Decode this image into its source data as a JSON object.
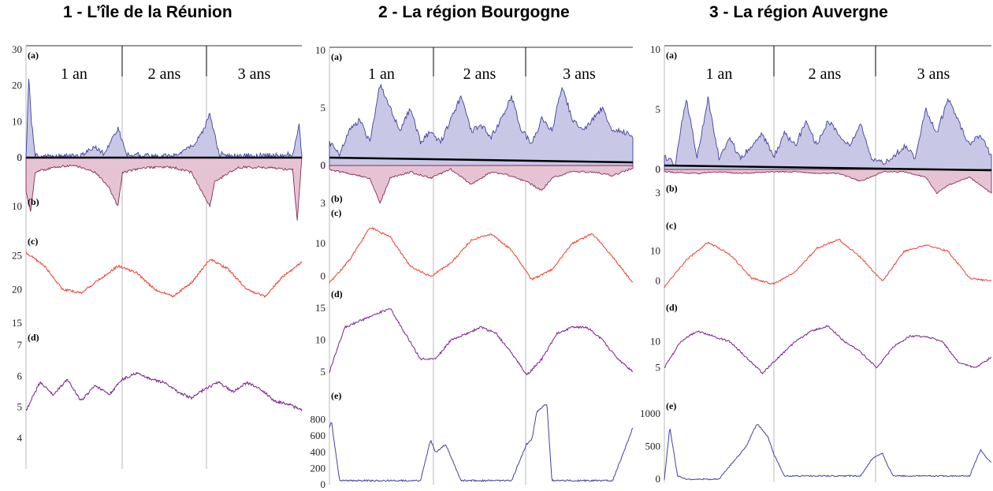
{
  "titles": [
    "1 - L’île de la Réunion",
    "2 - La région Bourgogne",
    "3 - La région Auvergne"
  ],
  "year_labels": [
    "1 an",
    "2 ans",
    "3 ans"
  ],
  "panel_letters": [
    "(a)",
    "(b)",
    "(c)",
    "(d)",
    "(e)"
  ],
  "colors": {
    "a_line": "#3f3fa0",
    "a_fill": "#c8c8e6",
    "b_line": "#8b2b55",
    "b_fill": "#e6c3d3",
    "c_line": "#f23a2e",
    "d_line": "#7b1f8e",
    "e_line": "#4040a8",
    "baseline": "#000000",
    "divider": "#000000"
  },
  "chart_data": [
    {
      "type": "line",
      "title": "1 - L’île de la Réunion",
      "x_range": [
        0,
        3
      ],
      "x_unit_labels": [
        "1 an",
        "2 ans",
        "3 ans"
      ],
      "panels": [
        {
          "id": "a",
          "ylim": [
            0,
            30
          ],
          "ticks": [
            0,
            10,
            20,
            30
          ],
          "x": [
            0,
            0.03,
            0.06,
            0.1,
            0.3,
            0.6,
            0.75,
            0.85,
            1.0,
            1.1,
            1.3,
            1.6,
            1.8,
            1.9,
            2.0,
            2.1,
            2.3,
            2.6,
            2.9,
            2.97,
            3.0
          ],
          "values": [
            0,
            22,
            10,
            0.5,
            0.3,
            0.5,
            3,
            1,
            8,
            1,
            0.5,
            0.4,
            3,
            6,
            12,
            1,
            0.5,
            0.5,
            1,
            9,
            0
          ]
        },
        {
          "id": "b",
          "ylim": [
            0,
            10
          ],
          "ticks": [
            0,
            10
          ],
          "inverted": true,
          "x": [
            0,
            0.05,
            0.1,
            0.3,
            0.5,
            0.75,
            0.9,
            1.0,
            1.05,
            1.3,
            1.6,
            1.8,
            2.0,
            2.05,
            2.3,
            2.6,
            2.9,
            2.95,
            3.0
          ],
          "values": [
            7,
            11,
            3,
            2,
            1.5,
            3,
            6,
            10,
            3,
            2,
            2,
            3,
            10,
            5,
            2,
            2,
            2.5,
            13,
            0
          ]
        },
        {
          "id": "c",
          "ylim": [
            15,
            26
          ],
          "ticks": [
            15,
            20,
            25
          ],
          "x": [
            0,
            0.2,
            0.4,
            0.6,
            0.8,
            1.0,
            1.2,
            1.4,
            1.6,
            1.8,
            2.0,
            2.2,
            2.4,
            2.6,
            2.8,
            3.0
          ],
          "values": [
            25.5,
            23.5,
            20,
            19.5,
            21.5,
            23.5,
            22.5,
            20,
            19,
            21,
            24.5,
            23,
            20,
            19,
            22,
            24
          ]
        },
        {
          "id": "d",
          "ylim": [
            4,
            7
          ],
          "ticks": [
            4,
            5,
            6,
            7
          ],
          "x": [
            0,
            0.15,
            0.3,
            0.45,
            0.6,
            0.75,
            0.9,
            1.05,
            1.2,
            1.35,
            1.5,
            1.65,
            1.8,
            1.95,
            2.1,
            2.25,
            2.4,
            2.55,
            2.7,
            2.85,
            3.0
          ],
          "values": [
            4.9,
            5.8,
            5.4,
            5.9,
            5.2,
            5.7,
            5.4,
            5.9,
            6.1,
            5.9,
            5.8,
            5.5,
            5.3,
            5.6,
            5.8,
            5.5,
            5.8,
            5.6,
            5.2,
            5.1,
            4.9
          ]
        }
      ]
    },
    {
      "type": "line",
      "title": "2 - La région Bourgogne",
      "x_range": [
        0,
        3
      ],
      "x_unit_labels": [
        "1 an",
        "2 ans",
        "3 ans"
      ],
      "panels": [
        {
          "id": "a",
          "ylim": [
            0,
            10
          ],
          "ticks": [
            0,
            5,
            10
          ],
          "x": [
            0,
            0.1,
            0.2,
            0.3,
            0.4,
            0.5,
            0.6,
            0.7,
            0.8,
            0.9,
            1.0,
            1.1,
            1.2,
            1.3,
            1.4,
            1.5,
            1.6,
            1.7,
            1.8,
            1.9,
            2.0,
            2.1,
            2.2,
            2.3,
            2.4,
            2.5,
            2.6,
            2.7,
            2.8,
            2.9,
            3.0
          ],
          "values": [
            2,
            1,
            3,
            4,
            2,
            7,
            5,
            3,
            5,
            2,
            3,
            2,
            4,
            6,
            3,
            3.5,
            2.5,
            4,
            6,
            3,
            2,
            4,
            3,
            7,
            4,
            3,
            4,
            5,
            3,
            3,
            2.5
          ]
        },
        {
          "id": "b",
          "ylim": [
            0,
            3
          ],
          "ticks": [
            0,
            3
          ],
          "inverted": true,
          "x": [
            0,
            0.4,
            0.5,
            0.6,
            0.8,
            1.0,
            1.2,
            1.4,
            1.6,
            1.8,
            2.0,
            2.1,
            2.2,
            2.4,
            2.6,
            2.8,
            3.0
          ],
          "values": [
            0.3,
            1,
            3,
            1,
            0.5,
            1,
            0.3,
            1.5,
            0.5,
            0.8,
            1.5,
            2,
            1,
            0.5,
            0.5,
            0.8,
            0.2
          ]
        },
        {
          "id": "c",
          "ylim": [
            -3,
            17
          ],
          "ticks": [
            0,
            10
          ],
          "x": [
            0,
            0.2,
            0.4,
            0.6,
            0.8,
            1.0,
            1.2,
            1.4,
            1.6,
            1.8,
            2.0,
            2.2,
            2.4,
            2.6,
            2.8,
            3.0
          ],
          "values": [
            -2,
            5,
            15,
            12,
            3,
            0,
            4,
            11,
            13,
            8,
            -1,
            2,
            10,
            13,
            6,
            -2
          ]
        },
        {
          "id": "d",
          "ylim": [
            4,
            16
          ],
          "ticks": [
            5,
            10,
            15
          ],
          "x": [
            0,
            0.15,
            0.3,
            0.45,
            0.6,
            0.75,
            0.9,
            1.05,
            1.2,
            1.35,
            1.5,
            1.65,
            1.8,
            1.95,
            2.1,
            2.25,
            2.4,
            2.55,
            2.7,
            2.85,
            3.0
          ],
          "values": [
            5,
            12,
            13,
            14,
            15,
            11,
            7,
            7,
            10,
            11,
            12,
            11,
            8,
            4.5,
            7,
            11,
            12,
            12,
            10,
            7,
            5
          ]
        },
        {
          "id": "e",
          "ylim": [
            0,
            1000
          ],
          "ticks": [
            0,
            200,
            400,
            600,
            800
          ],
          "x": [
            0,
            0.02,
            0.1,
            0.2,
            0.5,
            0.9,
            1.0,
            1.05,
            1.15,
            1.3,
            1.5,
            1.8,
            1.95,
            2.0,
            2.05,
            2.15,
            2.2,
            2.3,
            2.5,
            2.8,
            2.97,
            3.0
          ],
          "values": [
            700,
            780,
            50,
            50,
            50,
            50,
            550,
            400,
            500,
            50,
            50,
            50,
            500,
            550,
            900,
            1000,
            50,
            50,
            50,
            50,
            600,
            700
          ]
        }
      ]
    },
    {
      "type": "line",
      "title": "3 - La région Auvergne",
      "x_range": [
        0,
        3
      ],
      "x_unit_labels": [
        "1 an",
        "2 ans",
        "3 ans"
      ],
      "panels": [
        {
          "id": "a",
          "ylim": [
            0,
            10
          ],
          "ticks": [
            0,
            5,
            10
          ],
          "x": [
            0,
            0.1,
            0.2,
            0.3,
            0.4,
            0.5,
            0.6,
            0.7,
            0.8,
            0.9,
            1.0,
            1.1,
            1.2,
            1.3,
            1.4,
            1.5,
            1.6,
            1.7,
            1.8,
            1.9,
            2.0,
            2.1,
            2.2,
            2.3,
            2.4,
            2.5,
            2.6,
            2.7,
            2.8,
            2.9,
            3.0
          ],
          "values": [
            1,
            0.5,
            6,
            1,
            6,
            1,
            2.5,
            1,
            2,
            3,
            1,
            3,
            2,
            4,
            2,
            4,
            3,
            2,
            4,
            1,
            0.5,
            1,
            2,
            1,
            5,
            3,
            6,
            4,
            2,
            3,
            1
          ]
        },
        {
          "id": "b",
          "ylim": [
            0,
            3
          ],
          "ticks": [
            0,
            3
          ],
          "inverted": true,
          "x": [
            0,
            0.3,
            0.5,
            0.7,
            1.0,
            1.2,
            1.4,
            1.6,
            1.8,
            2.0,
            2.2,
            2.4,
            2.5,
            2.6,
            2.8,
            3.0
          ],
          "values": [
            0.3,
            0.5,
            0.3,
            0.5,
            0.3,
            0.3,
            0.5,
            0.5,
            1.5,
            0.3,
            0.3,
            1,
            3,
            2,
            1,
            3
          ]
        },
        {
          "id": "c",
          "ylim": [
            -3,
            16
          ],
          "ticks": [
            0,
            10
          ],
          "x": [
            0,
            0.2,
            0.4,
            0.6,
            0.8,
            1.0,
            1.2,
            1.4,
            1.6,
            1.8,
            2.0,
            2.2,
            2.4,
            2.6,
            2.8,
            3.0
          ],
          "values": [
            -2,
            7,
            13,
            9,
            1,
            -1,
            3,
            11,
            14,
            8,
            0,
            10,
            12,
            10,
            1,
            0
          ]
        },
        {
          "id": "d",
          "ylim": [
            3,
            15
          ],
          "ticks": [
            5,
            10
          ],
          "x": [
            0,
            0.15,
            0.3,
            0.45,
            0.6,
            0.75,
            0.9,
            1.05,
            1.2,
            1.35,
            1.5,
            1.65,
            1.8,
            1.95,
            2.1,
            2.25,
            2.4,
            2.55,
            2.7,
            2.85,
            3.0
          ],
          "values": [
            5,
            10,
            12,
            11,
            10,
            7,
            4,
            7,
            10,
            12,
            13,
            10,
            8,
            5,
            9,
            11,
            11,
            10,
            6,
            5,
            7
          ]
        },
        {
          "id": "e",
          "ylim": [
            0,
            1000
          ],
          "ticks": [
            0,
            500,
            1000
          ],
          "x": [
            0,
            0.05,
            0.12,
            0.2,
            0.5,
            0.75,
            0.85,
            0.95,
            1.0,
            1.1,
            1.5,
            1.8,
            1.9,
            2.0,
            2.05,
            2.1,
            2.5,
            2.8,
            2.9,
            2.97,
            3.0
          ],
          "values": [
            0,
            800,
            50,
            0,
            0,
            500,
            850,
            650,
            400,
            50,
            50,
            50,
            300,
            400,
            200,
            50,
            50,
            50,
            450,
            300,
            250
          ]
        }
      ]
    }
  ]
}
